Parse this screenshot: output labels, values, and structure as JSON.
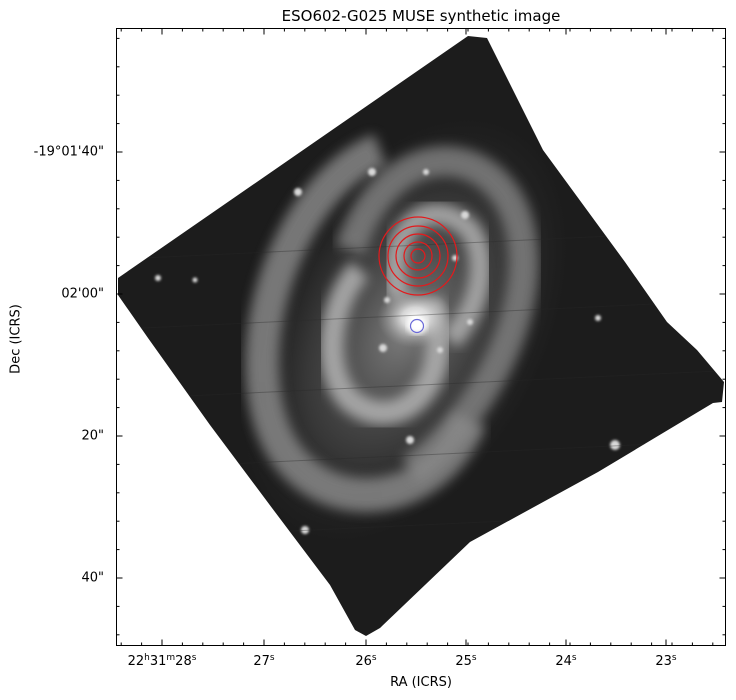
{
  "title": "ESO602-G025 MUSE synthetic image",
  "x_axis": {
    "label": "RA (ICRS)",
    "ticks": [
      {
        "h": "22",
        "m": "31",
        "s": "28",
        "full": true
      },
      {
        "s": "27"
      },
      {
        "s": "26"
      },
      {
        "s": "25"
      },
      {
        "s": "24"
      },
      {
        "s": "23"
      }
    ]
  },
  "y_axis": {
    "label": "Dec (ICRS)",
    "ticks": [
      "-19°01'40\"",
      "02'00\"",
      "20\"",
      "40\""
    ]
  },
  "overlays": {
    "red_circles": {
      "color": "#e41a1c",
      "count": 5
    },
    "blue_circle": {
      "color": "#6a6ad8"
    }
  }
}
